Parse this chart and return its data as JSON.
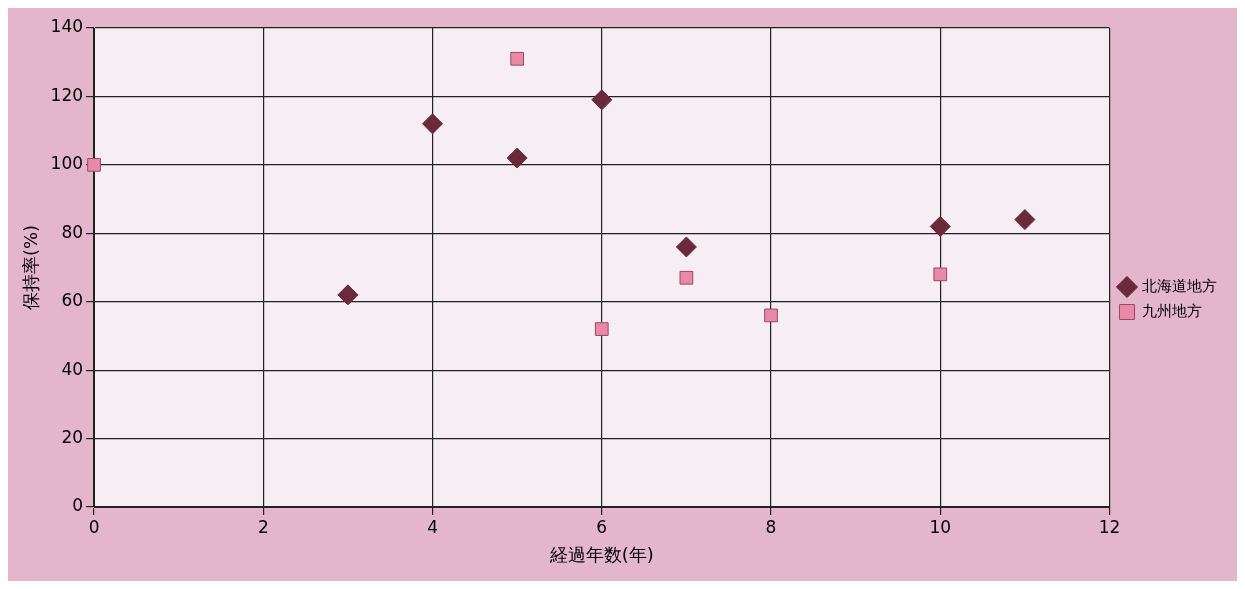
{
  "chart_data": {
    "type": "scatter",
    "xlabel": "経過年数(年)",
    "ylabel": "保持率(%)",
    "xlim": [
      0,
      12
    ],
    "xticks": [
      0,
      2,
      4,
      6,
      8,
      10,
      12
    ],
    "ylim": [
      0,
      140
    ],
    "yticks": [
      0,
      20,
      40,
      60,
      80,
      100,
      120,
      140
    ],
    "grid": true,
    "legend": "right",
    "series": [
      {
        "name": "北海道地方",
        "color": "#6b2a3c",
        "marker": "diamond",
        "x": [
          3,
          4,
          5,
          6,
          7,
          10,
          11
        ],
        "values": [
          62,
          112,
          102,
          119,
          76,
          82,
          84
        ]
      },
      {
        "name": "九州地方",
        "color": "#e889a8",
        "marker": "square",
        "x": [
          0,
          5,
          6,
          7,
          8,
          10
        ],
        "values": [
          100,
          131,
          52,
          67,
          56,
          68
        ]
      }
    ]
  }
}
